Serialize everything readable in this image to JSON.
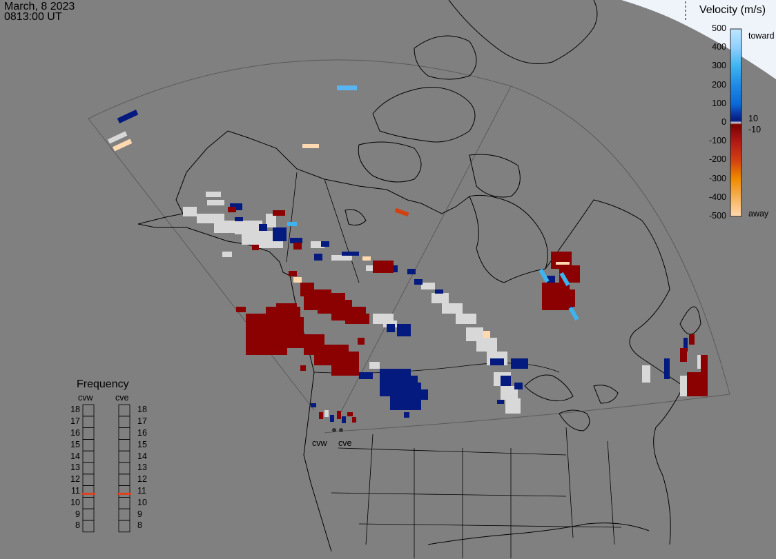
{
  "header": {
    "date": "March, 8 2023",
    "time": "0813:00 UT"
  },
  "velocity_legend": {
    "title": "Velocity (m/s)",
    "ticks": [
      "500",
      "400",
      "300",
      "200",
      "100",
      "0",
      "-100",
      "-200",
      "-300",
      "-400",
      "-500"
    ],
    "inner_labels": [
      "10",
      "-10"
    ],
    "toward_label": "toward",
    "away_label": "away",
    "colors": [
      "#bfe6ff",
      "#3cb4f0",
      "#0a6ad8",
      "#0b2f9e",
      "#041a7e",
      "#d8d8d8",
      "#7a0000",
      "#b01818",
      "#d24010",
      "#f08a00",
      "#ffd9b0"
    ]
  },
  "frequency_panel": {
    "title": "Frequency",
    "radars": [
      "cvw",
      "cve"
    ],
    "levels": [
      "18",
      "17",
      "16",
      "15",
      "14",
      "13",
      "12",
      "11",
      "10",
      "9",
      "8"
    ],
    "cvw_frequency_mhz": 10.8,
    "cve_frequency_mhz": 10.8,
    "marker_color": "#e0401a"
  },
  "map_labels": {
    "radar_cvw": "cvw",
    "radar_cve": "cve"
  },
  "colors": {
    "background": "#808080",
    "ground_scatter": "#d8d8d8",
    "toward": "#041a7e",
    "away": "#8b0000",
    "fov_outline": "#5a5a5a"
  }
}
